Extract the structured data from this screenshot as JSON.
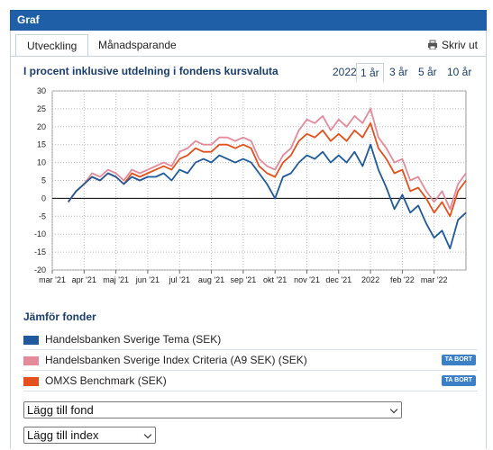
{
  "header": {
    "title": "Graf"
  },
  "tabs": [
    "Utveckling",
    "Månadsparande"
  ],
  "print_label": "Skriv ut",
  "periods": [
    "2022",
    "1 år",
    "3 år",
    "5 år",
    "10 år"
  ],
  "active_period": "1 år",
  "chart_data": {
    "type": "line",
    "title": "I procent inklusive utdelning i fondens kursvaluta",
    "categories": [
      "mar '21",
      null,
      null,
      null,
      "apr '21",
      null,
      null,
      null,
      "maj '21",
      null,
      null,
      null,
      "jun '21",
      null,
      null,
      null,
      "jul '21",
      null,
      null,
      null,
      "aug '21",
      null,
      null,
      null,
      "sep '21",
      null,
      null,
      null,
      "okt '21",
      null,
      null,
      null,
      "nov '21",
      null,
      null,
      null,
      "dec '21",
      null,
      null,
      null,
      "2022",
      null,
      null,
      null,
      "feb '22",
      null,
      null,
      null,
      "mar '22",
      null,
      null,
      null,
      null
    ],
    "series": [
      {
        "name": "Handelsbanken Sverige Tema (SEK)",
        "color": "#1f5a9c",
        "values": [
          null,
          null,
          -1,
          2,
          4,
          6,
          5,
          7,
          6,
          4,
          6,
          5,
          6,
          6,
          7,
          5,
          8,
          7,
          10,
          11,
          10,
          12,
          11,
          10,
          11,
          10,
          7,
          4,
          0,
          6,
          7,
          10,
          12,
          11,
          13,
          10,
          12,
          10,
          13,
          9,
          15,
          8,
          3,
          -3,
          1,
          -4,
          -2,
          -7,
          -11,
          -9,
          -14,
          -6,
          -4
        ]
      },
      {
        "name": "Handelsbanken Sverige Index Criteria (A9 SEK) (SEK)",
        "color": "#e48a9a",
        "values": [
          null,
          null,
          -1,
          2,
          4,
          7,
          6,
          8,
          7,
          5,
          8,
          7,
          8,
          9,
          10,
          9,
          13,
          14,
          16,
          15,
          15,
          17,
          17,
          16,
          17,
          16,
          11,
          9,
          8,
          12,
          14,
          19,
          22,
          21,
          23,
          19,
          22,
          20,
          23,
          21,
          25,
          17,
          14,
          10,
          11,
          5,
          6,
          2,
          -1,
          2,
          -3,
          4,
          7
        ]
      },
      {
        "name": "OMXS Benchmark (SEK)",
        "color": "#e5501c",
        "values": [
          null,
          null,
          -1,
          2,
          4,
          6,
          5,
          7,
          6,
          4,
          7,
          6,
          7,
          8,
          9,
          8,
          11,
          12,
          14,
          13,
          13,
          15,
          15,
          14,
          15,
          14,
          9,
          7,
          6,
          10,
          12,
          16,
          18,
          17,
          19,
          16,
          18,
          16,
          19,
          17,
          21,
          14,
          11,
          7,
          8,
          2,
          3,
          0,
          -4,
          -1,
          -5,
          2,
          5
        ]
      }
    ],
    "ylim": [
      -20,
      30
    ],
    "yticks": [
      -20,
      -15,
      -10,
      -5,
      0,
      5,
      10,
      15,
      20,
      25,
      30
    ],
    "grid": true
  },
  "compare": {
    "title": "Jämför fonder",
    "remove_label": "TA BORT",
    "removable": [
      false,
      true,
      true
    ]
  },
  "selects": [
    "Lägg till fond",
    "Lägg till index"
  ]
}
